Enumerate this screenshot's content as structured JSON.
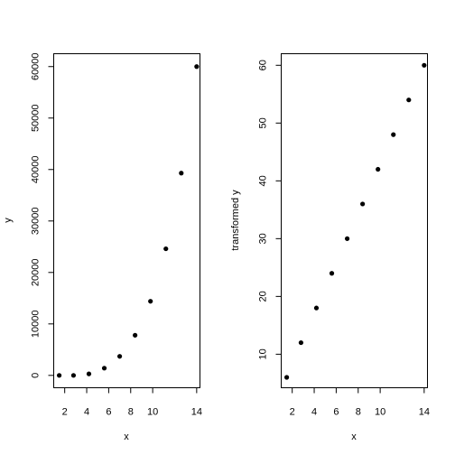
{
  "chart_data": [
    {
      "type": "scatter",
      "title": "",
      "xlabel": "x",
      "ylabel": "y",
      "xlim": [
        1.0,
        14.3
      ],
      "ylim": [
        -2400,
        62500
      ],
      "x_ticks": [
        2,
        4,
        6,
        8,
        10,
        14
      ],
      "x_tick_labels": [
        "2",
        "4",
        "6",
        "8",
        "10",
        "14"
      ],
      "y_ticks": [
        0,
        10000,
        20000,
        30000,
        40000,
        50000,
        60000
      ],
      "y_tick_labels": [
        "0",
        "10000",
        "20000",
        "30000",
        "40000",
        "50000",
        "60000"
      ],
      "grid": false,
      "points": [
        {
          "x": 1.5,
          "y": 0
        },
        {
          "x": 2.8,
          "y": 0
        },
        {
          "x": 4.2,
          "y": 300
        },
        {
          "x": 5.6,
          "y": 1400
        },
        {
          "x": 7.0,
          "y": 3700
        },
        {
          "x": 8.4,
          "y": 7800
        },
        {
          "x": 9.8,
          "y": 14400
        },
        {
          "x": 11.2,
          "y": 24600
        },
        {
          "x": 12.6,
          "y": 39300
        },
        {
          "x": 14.0,
          "y": 60000
        }
      ]
    },
    {
      "type": "scatter",
      "title": "",
      "xlabel": "x",
      "ylabel": "transformed y",
      "xlim": [
        1.0,
        14.3
      ],
      "ylim": [
        4.2,
        62
      ],
      "x_ticks": [
        2,
        4,
        6,
        8,
        10,
        14
      ],
      "x_tick_labels": [
        "2",
        "4",
        "6",
        "8",
        "10",
        "14"
      ],
      "y_ticks": [
        10,
        20,
        30,
        40,
        50,
        60
      ],
      "y_tick_labels": [
        "10",
        "20",
        "30",
        "40",
        "50",
        "60"
      ],
      "grid": false,
      "points": [
        {
          "x": 1.5,
          "y": 6
        },
        {
          "x": 2.8,
          "y": 12
        },
        {
          "x": 4.2,
          "y": 18
        },
        {
          "x": 5.6,
          "y": 24
        },
        {
          "x": 7.0,
          "y": 30
        },
        {
          "x": 8.4,
          "y": 36
        },
        {
          "x": 9.8,
          "y": 42
        },
        {
          "x": 11.2,
          "y": 48
        },
        {
          "x": 12.6,
          "y": 54
        },
        {
          "x": 14.0,
          "y": 60
        }
      ]
    }
  ]
}
